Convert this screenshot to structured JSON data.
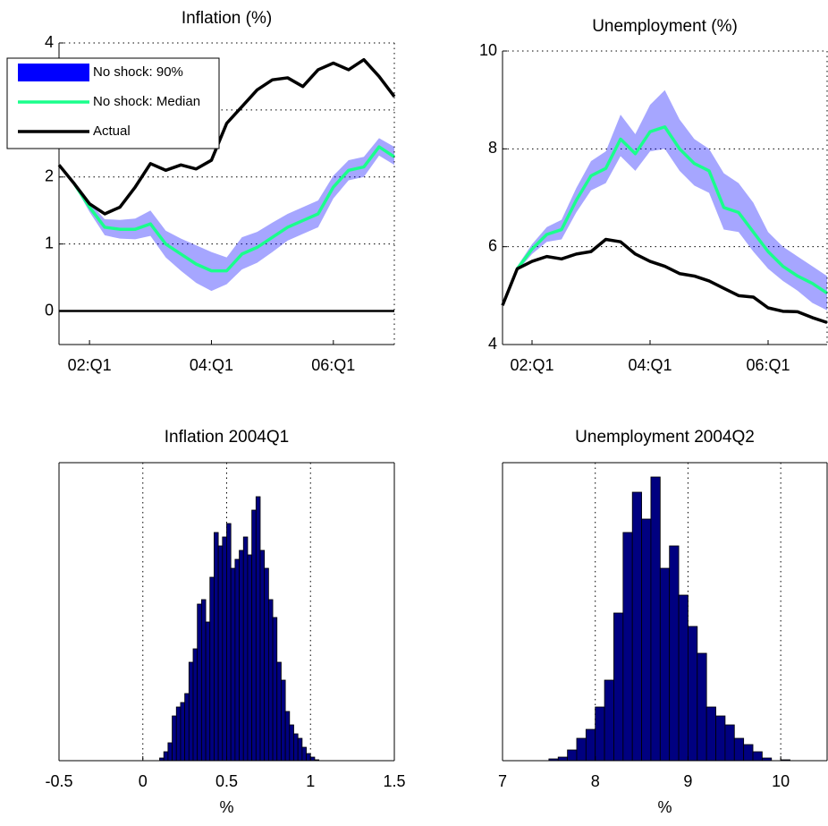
{
  "chart_data": [
    {
      "type": "line",
      "title": "Inflation (%)",
      "legend": "upper left",
      "grid": "y",
      "hline": 0,
      "x": [
        0,
        1,
        2,
        3,
        4,
        5,
        6,
        7,
        8,
        9,
        10,
        11,
        12,
        13,
        14,
        15,
        16,
        17,
        18,
        19,
        20,
        21,
        22
      ],
      "xlim": [
        0,
        22
      ],
      "xticks": [
        {
          "value": 2,
          "label": "02:Q1"
        },
        {
          "value": 10,
          "label": "04:Q1"
        },
        {
          "value": 18,
          "label": "06:Q1"
        }
      ],
      "ylim": [
        -0.5,
        4
      ],
      "yticks": [
        0,
        1,
        2,
        3,
        4
      ],
      "series": [
        {
          "name": "No shock: 90%",
          "kind": "band",
          "color": "#0000ff",
          "opacity": 0.35,
          "values": [
            null,
            1.88,
            1.48,
            1.13,
            1.08,
            1.07,
            1.12,
            0.8,
            0.6,
            0.42,
            0.3,
            0.4,
            0.62,
            0.72,
            0.88,
            1.05,
            1.15,
            1.25,
            1.68,
            1.95,
            2.0,
            2.32,
            2.18
          ],
          "upper": [
            null,
            1.92,
            1.62,
            1.37,
            1.36,
            1.38,
            1.5,
            1.2,
            1.08,
            0.98,
            0.88,
            0.8,
            1.1,
            1.18,
            1.32,
            1.45,
            1.55,
            1.65,
            2.02,
            2.25,
            2.3,
            2.58,
            2.45
          ]
        },
        {
          "name": "No shock: Median",
          "kind": "line",
          "color": "#1aff8c",
          "values": [
            null,
            1.9,
            1.55,
            1.25,
            1.22,
            1.22,
            1.3,
            1.0,
            0.85,
            0.7,
            0.6,
            0.6,
            0.85,
            0.95,
            1.1,
            1.25,
            1.35,
            1.45,
            1.85,
            2.1,
            2.15,
            2.45,
            2.3
          ]
        },
        {
          "name": "Actual",
          "kind": "line",
          "color": "#000000",
          "values": [
            2.18,
            1.9,
            1.6,
            1.45,
            1.55,
            1.85,
            2.2,
            2.1,
            2.18,
            2.12,
            2.25,
            2.8,
            3.05,
            3.3,
            3.45,
            3.48,
            3.35,
            3.6,
            3.7,
            3.6,
            3.75,
            3.5,
            3.2
          ]
        }
      ]
    },
    {
      "type": "line",
      "title": "Unemployment (%)",
      "grid": "y",
      "x": [
        0,
        1,
        2,
        3,
        4,
        5,
        6,
        7,
        8,
        9,
        10,
        11,
        12,
        13,
        14,
        15,
        16,
        17,
        18,
        19,
        20,
        21,
        22
      ],
      "xlim": [
        0,
        22
      ],
      "xticks": [
        {
          "value": 2,
          "label": "02:Q1"
        },
        {
          "value": 10,
          "label": "04:Q1"
        },
        {
          "value": 18,
          "label": "06:Q1"
        }
      ],
      "ylim": [
        4,
        10
      ],
      "yticks": [
        4,
        6,
        8,
        10
      ],
      "series": [
        {
          "kind": "band",
          "color": "#0000ff",
          "opacity": 0.35,
          "values": [
            null,
            5.5,
            5.85,
            6.1,
            6.15,
            6.7,
            7.15,
            7.3,
            7.85,
            7.55,
            7.95,
            8.0,
            7.55,
            7.25,
            7.1,
            6.35,
            6.3,
            5.9,
            5.55,
            5.3,
            5.1,
            4.85,
            4.7
          ],
          "upper": [
            null,
            5.6,
            6.05,
            6.4,
            6.55,
            7.2,
            7.75,
            7.95,
            8.7,
            8.3,
            8.9,
            9.2,
            8.6,
            8.2,
            8.0,
            7.5,
            7.3,
            6.9,
            6.3,
            6.0,
            5.8,
            5.6,
            5.4
          ]
        },
        {
          "kind": "line",
          "color": "#1aff8c",
          "values": [
            null,
            5.55,
            5.95,
            6.25,
            6.35,
            6.95,
            7.45,
            7.6,
            8.2,
            7.9,
            8.35,
            8.45,
            8.0,
            7.7,
            7.55,
            6.8,
            6.7,
            6.3,
            5.9,
            5.6,
            5.4,
            5.25,
            5.05
          ]
        },
        {
          "kind": "line",
          "color": "#000000",
          "values": [
            4.8,
            5.55,
            5.7,
            5.8,
            5.75,
            5.85,
            5.9,
            6.15,
            6.1,
            5.85,
            5.7,
            5.6,
            5.45,
            5.4,
            5.3,
            5.15,
            5.0,
            4.97,
            4.75,
            4.68,
            4.67,
            4.55,
            4.45
          ]
        }
      ]
    },
    {
      "type": "histogram",
      "title": "Inflation 2004Q1",
      "xlabel": "%",
      "grid": "x",
      "color": "#000080",
      "bins": [
        0.1,
        0.125,
        0.15,
        0.175,
        0.2,
        0.225,
        0.25,
        0.275,
        0.3,
        0.325,
        0.35,
        0.375,
        0.4,
        0.425,
        0.45,
        0.475,
        0.5,
        0.525,
        0.55,
        0.575,
        0.6,
        0.625,
        0.65,
        0.675,
        0.7,
        0.725,
        0.75,
        0.775,
        0.8,
        0.825,
        0.85,
        0.875,
        0.9,
        0.925,
        0.95,
        0.975,
        1.0,
        1.025,
        1.05
      ],
      "values": [
        3,
        10,
        20,
        50,
        60,
        65,
        75,
        110,
        125,
        175,
        180,
        155,
        205,
        255,
        240,
        250,
        265,
        215,
        225,
        235,
        250,
        230,
        280,
        295,
        235,
        215,
        180,
        160,
        110,
        90,
        55,
        40,
        30,
        25,
        15,
        8,
        4,
        1
      ],
      "xlim": [
        -0.5,
        1.5
      ],
      "xticks": [
        -0.5,
        0,
        0.5,
        1,
        1.5
      ],
      "ylim": [
        0,
        333
      ]
    },
    {
      "type": "histogram",
      "title": "Unemployment 2004Q2",
      "xlabel": "%",
      "grid": "x",
      "color": "#000080",
      "bins": [
        7.5,
        7.6,
        7.7,
        7.8,
        7.9,
        8.0,
        8.1,
        8.2,
        8.3,
        8.4,
        8.5,
        8.6,
        8.7,
        8.8,
        8.9,
        9.0,
        9.1,
        9.2,
        9.3,
        9.4,
        9.5,
        9.6,
        9.7,
        9.8,
        9.9,
        10.0,
        10.1
      ],
      "values": [
        2,
        4,
        12,
        25,
        35,
        60,
        90,
        165,
        255,
        300,
        270,
        317,
        215,
        240,
        185,
        150,
        120,
        60,
        50,
        40,
        25,
        18,
        10,
        3,
        0,
        1
      ],
      "xlim": [
        7,
        10.5
      ],
      "xticks": [
        7,
        8,
        9,
        10
      ],
      "ylim": [
        0,
        333
      ]
    }
  ]
}
